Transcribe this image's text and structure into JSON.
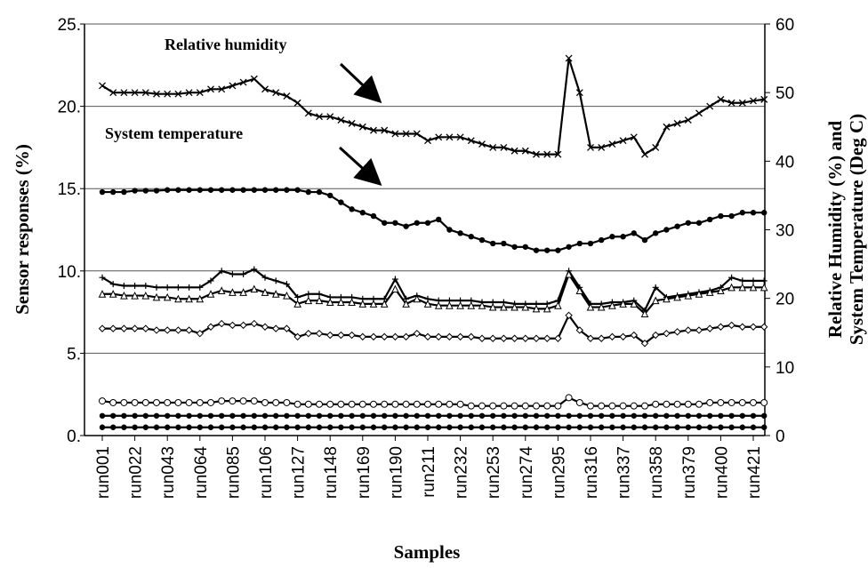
{
  "chart_data": {
    "type": "line",
    "annotations": [
      "Relative humidity",
      "System temperature"
    ],
    "xlabel": "Samples",
    "ylabel": "Sensor responses (%)",
    "y2label": [
      "Relative Humidity (%) and",
      "System Temperature (Deg C)"
    ],
    "categories": [
      "run001",
      null,
      null,
      "run022",
      null,
      null,
      "run043",
      null,
      null,
      "run064",
      null,
      null,
      "run085",
      null,
      null,
      "run106",
      null,
      null,
      "run127",
      null,
      null,
      "run148",
      null,
      null,
      "run169",
      null,
      null,
      "run190",
      null,
      null,
      "run211",
      null,
      null,
      "run232",
      null,
      null,
      "run253",
      null,
      null,
      "run274",
      null,
      null,
      "run295",
      null,
      null,
      "run316",
      null,
      null,
      "run337",
      null,
      null,
      "run358",
      null,
      null,
      "run379",
      null,
      null,
      "run400",
      null,
      null,
      "run421",
      null
    ],
    "ylim": [
      0,
      25
    ],
    "yticks": [
      {
        "value": 0,
        "label": "0."
      },
      {
        "value": 5,
        "label": "5."
      },
      {
        "value": 10,
        "label": "10."
      },
      {
        "value": 15,
        "label": "15."
      },
      {
        "value": 20,
        "label": "20."
      },
      {
        "value": 25,
        "label": "25."
      }
    ],
    "y2lim": [
      0,
      60
    ],
    "y2ticks": [
      0,
      10,
      20,
      30,
      40,
      50,
      60
    ],
    "grid": true,
    "series": [
      {
        "color": "#000000",
        "axis": "y2",
        "marker": "x",
        "values": [
          51,
          50,
          50,
          50,
          50,
          49.8,
          49.8,
          49.8,
          50,
          50,
          50.5,
          50.5,
          51,
          51.5,
          52,
          50.5,
          50,
          49.5,
          48.5,
          47,
          46.5,
          46.5,
          46,
          45.5,
          45,
          44.5,
          44.5,
          44,
          44,
          44,
          43,
          43.5,
          43.5,
          43.5,
          43,
          42.5,
          42,
          42,
          41.5,
          41.5,
          41,
          41,
          41,
          55,
          50,
          42,
          42,
          42.5,
          43,
          43.5,
          41,
          42,
          45,
          45.5,
          46,
          47,
          48,
          49,
          48.5,
          48.5,
          48.8,
          49
        ]
      },
      {
        "color": "#000000",
        "axis": "y2",
        "marker": "dot",
        "values": [
          35.5,
          35.5,
          35.5,
          35.7,
          35.7,
          35.7,
          35.8,
          35.8,
          35.8,
          35.8,
          35.8,
          35.8,
          35.8,
          35.8,
          35.8,
          35.8,
          35.8,
          35.8,
          35.8,
          35.5,
          35.5,
          35,
          34,
          33,
          32.5,
          32,
          31,
          31,
          30.5,
          31,
          31,
          31.5,
          30,
          29.5,
          29,
          28.5,
          28,
          28,
          27.5,
          27.5,
          27,
          27,
          27,
          27.5,
          28,
          28,
          28.5,
          29,
          29,
          29.5,
          28.5,
          29.5,
          30,
          30.5,
          31,
          31,
          31.5,
          32,
          32,
          32.5,
          32.5,
          32.5
        ]
      },
      {
        "color": "#000000",
        "marker": "plus",
        "values": [
          9.6,
          9.2,
          9.1,
          9.1,
          9.1,
          9.0,
          9.0,
          9.0,
          9.0,
          9.0,
          9.4,
          10.0,
          9.8,
          9.8,
          10.1,
          9.6,
          9.4,
          9.2,
          8.4,
          8.6,
          8.6,
          8.4,
          8.4,
          8.4,
          8.3,
          8.3,
          8.3,
          9.5,
          8.3,
          8.5,
          8.3,
          8.2,
          8.2,
          8.2,
          8.2,
          8.1,
          8.1,
          8.1,
          8.0,
          8.0,
          8.0,
          8.0,
          8.2,
          10.0,
          9.0,
          8.0,
          8.0,
          8.1,
          8.1,
          8.2,
          7.6,
          9.0,
          8.4,
          8.5,
          8.6,
          8.7,
          8.8,
          9.0,
          9.6,
          9.4,
          9.4,
          9.4
        ]
      },
      {
        "color": "#000000",
        "marker": "triangle",
        "values": [
          8.6,
          8.6,
          8.5,
          8.5,
          8.5,
          8.4,
          8.4,
          8.3,
          8.3,
          8.3,
          8.6,
          8.8,
          8.7,
          8.7,
          8.9,
          8.7,
          8.6,
          8.5,
          8.0,
          8.2,
          8.2,
          8.1,
          8.1,
          8.1,
          8.0,
          8.0,
          8.0,
          8.9,
          8.0,
          8.3,
          8.0,
          7.9,
          7.9,
          7.9,
          7.9,
          7.9,
          7.8,
          7.8,
          7.8,
          7.8,
          7.7,
          7.7,
          7.9,
          9.8,
          8.8,
          7.8,
          7.8,
          7.9,
          8.0,
          8.0,
          7.4,
          8.2,
          8.3,
          8.4,
          8.5,
          8.6,
          8.7,
          8.8,
          9.0,
          9.0,
          9.0,
          9.0
        ]
      },
      {
        "color": "#000000",
        "marker": "diamond",
        "values": [
          6.5,
          6.5,
          6.5,
          6.5,
          6.5,
          6.4,
          6.4,
          6.4,
          6.4,
          6.2,
          6.6,
          6.8,
          6.7,
          6.7,
          6.8,
          6.6,
          6.5,
          6.5,
          6.0,
          6.2,
          6.2,
          6.1,
          6.1,
          6.1,
          6.0,
          6.0,
          6.0,
          6.0,
          6.0,
          6.2,
          6.0,
          6.0,
          6.0,
          6.0,
          6.0,
          5.9,
          5.9,
          5.9,
          5.9,
          5.9,
          5.9,
          5.9,
          5.9,
          7.3,
          6.4,
          5.9,
          5.9,
          6.0,
          6.0,
          6.1,
          5.6,
          6.1,
          6.2,
          6.3,
          6.4,
          6.4,
          6.5,
          6.6,
          6.7,
          6.6,
          6.6,
          6.6
        ]
      },
      {
        "color": "#000000",
        "marker": "circle",
        "values": [
          2.1,
          2.0,
          2.0,
          2.0,
          2.0,
          2.0,
          2.0,
          2.0,
          2.0,
          2.0,
          2.0,
          2.1,
          2.1,
          2.1,
          2.1,
          2.0,
          2.0,
          2.0,
          1.9,
          1.9,
          1.9,
          1.9,
          1.9,
          1.9,
          1.9,
          1.9,
          1.9,
          1.9,
          1.9,
          1.9,
          1.9,
          1.9,
          1.9,
          1.9,
          1.8,
          1.8,
          1.8,
          1.8,
          1.8,
          1.8,
          1.8,
          1.8,
          1.8,
          2.3,
          2.0,
          1.8,
          1.8,
          1.8,
          1.8,
          1.8,
          1.8,
          1.9,
          1.9,
          1.9,
          1.9,
          1.9,
          2.0,
          2.0,
          2.0,
          2.0,
          2.0,
          2.0
        ]
      },
      {
        "color": "#000000",
        "marker": "dot",
        "values": [
          1.2,
          1.2,
          1.2,
          1.2,
          1.2,
          1.2,
          1.2,
          1.2,
          1.2,
          1.2,
          1.2,
          1.2,
          1.2,
          1.2,
          1.2,
          1.2,
          1.2,
          1.2,
          1.2,
          1.2,
          1.2,
          1.2,
          1.2,
          1.2,
          1.2,
          1.2,
          1.2,
          1.2,
          1.2,
          1.2,
          1.2,
          1.2,
          1.2,
          1.2,
          1.2,
          1.2,
          1.2,
          1.2,
          1.2,
          1.2,
          1.2,
          1.2,
          1.2,
          1.2,
          1.2,
          1.2,
          1.2,
          1.2,
          1.2,
          1.2,
          1.2,
          1.2,
          1.2,
          1.2,
          1.2,
          1.2,
          1.2,
          1.2,
          1.2,
          1.2,
          1.2,
          1.2
        ]
      },
      {
        "color": "#000000",
        "marker": "dot",
        "values": [
          0.5,
          0.5,
          0.5,
          0.5,
          0.5,
          0.5,
          0.5,
          0.5,
          0.5,
          0.5,
          0.5,
          0.5,
          0.5,
          0.5,
          0.5,
          0.5,
          0.5,
          0.5,
          0.5,
          0.5,
          0.5,
          0.5,
          0.5,
          0.5,
          0.5,
          0.5,
          0.5,
          0.5,
          0.5,
          0.5,
          0.5,
          0.5,
          0.5,
          0.5,
          0.5,
          0.5,
          0.5,
          0.5,
          0.5,
          0.5,
          0.5,
          0.5,
          0.5,
          0.5,
          0.5,
          0.5,
          0.5,
          0.5,
          0.5,
          0.5,
          0.5,
          0.5,
          0.5,
          0.5,
          0.5,
          0.5,
          0.5,
          0.5,
          0.5,
          0.5,
          0.5,
          0.5
        ]
      }
    ]
  }
}
